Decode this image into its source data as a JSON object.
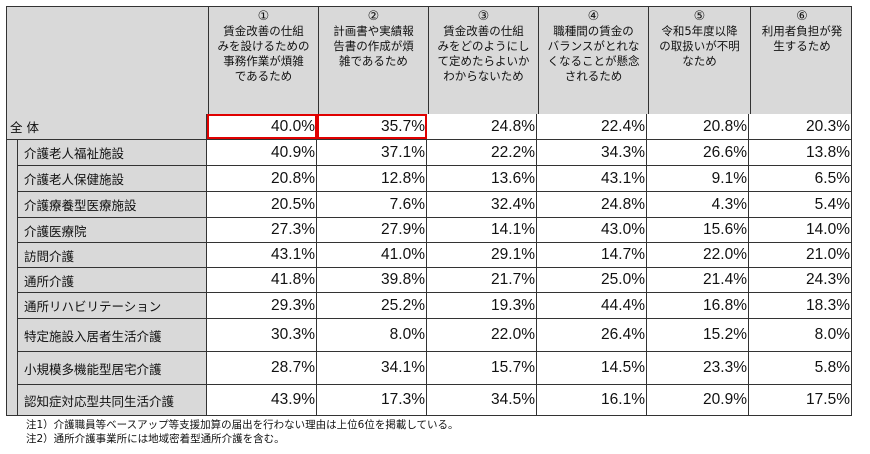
{
  "table": {
    "columns": [
      {
        "num": "①",
        "label": "賃金改善の仕組みを設けるための事務作業が煩雑であるため",
        "lines": [
          "賃金改善の仕組",
          "みを設けるための",
          "事務作業が煩雑",
          "であるため"
        ]
      },
      {
        "num": "②",
        "label": "計画書や実績報告書の作成が煩雑であるため",
        "lines": [
          "計画書や実績報",
          "告書の作成が煩",
          "雑であるため"
        ]
      },
      {
        "num": "③",
        "label": "賃金改善の仕組みをどのようにして定めたらよいかわからないため",
        "lines": [
          "賃金改善の仕組",
          "みをどのようにし",
          "て定めたらよいか",
          "わからないため"
        ]
      },
      {
        "num": "④",
        "label": "職種間の賃金のバランスがとれなくなることが懸念されるため",
        "lines": [
          "職種間の賃金の",
          "バランスがとれな",
          "くなることが懸念",
          "されるため"
        ]
      },
      {
        "num": "⑤",
        "label": "令和5年度以降の取扱いが不明なため",
        "lines": [
          "令和5年度以降",
          "の取扱いが不明",
          "なため"
        ]
      },
      {
        "num": "⑥",
        "label": "利用者負担が発生するため",
        "lines": [
          "利用者負担が発",
          "生するため"
        ]
      }
    ],
    "rows": [
      {
        "label": "全 体",
        "values": [
          "40.0%",
          "35.7%",
          "24.8%",
          "22.4%",
          "20.8%",
          "20.3%"
        ],
        "highlighted": [
          0,
          1
        ]
      },
      {
        "label": "介護老人福祉施設",
        "values": [
          "40.9%",
          "37.1%",
          "22.2%",
          "34.3%",
          "26.6%",
          "13.8%"
        ]
      },
      {
        "label": "介護老人保健施設",
        "values": [
          "20.8%",
          "12.8%",
          "13.6%",
          "43.1%",
          "9.1%",
          "6.5%"
        ]
      },
      {
        "label": "介護療養型医療施設",
        "values": [
          "20.5%",
          "7.6%",
          "32.4%",
          "24.8%",
          "4.3%",
          "5.4%"
        ]
      },
      {
        "label": "介護医療院",
        "values": [
          "27.3%",
          "27.9%",
          "14.1%",
          "43.0%",
          "15.6%",
          "14.0%"
        ]
      },
      {
        "label": "訪問介護",
        "values": [
          "43.1%",
          "41.0%",
          "29.1%",
          "14.7%",
          "22.0%",
          "21.0%"
        ]
      },
      {
        "label": "通所介護",
        "values": [
          "41.8%",
          "39.8%",
          "21.7%",
          "25.0%",
          "21.4%",
          "24.3%"
        ]
      },
      {
        "label": "通所リハビリテーション",
        "values": [
          "29.3%",
          "25.2%",
          "19.3%",
          "44.4%",
          "16.8%",
          "18.3%"
        ]
      },
      {
        "label": "特定施設入居者生活介護",
        "values": [
          "30.3%",
          "8.0%",
          "22.0%",
          "26.4%",
          "15.2%",
          "8.0%"
        ]
      },
      {
        "label": "小規模多機能型居宅介護",
        "values": [
          "28.7%",
          "34.1%",
          "15.7%",
          "14.5%",
          "23.3%",
          "5.8%"
        ]
      },
      {
        "label": "認知症対応型共同生活介護",
        "values": [
          "43.9%",
          "17.3%",
          "34.5%",
          "16.1%",
          "20.9%",
          "17.5%"
        ]
      }
    ],
    "highlight_color": "#e00000",
    "header_bg": "#d9d9d9"
  },
  "notes": [
    "注1）介護職員等ベースアップ等支援加算の届出を行わない理由は上位6位を掲載している。",
    "注2）通所介護事業所には地域密着型通所介護を含む。"
  ]
}
